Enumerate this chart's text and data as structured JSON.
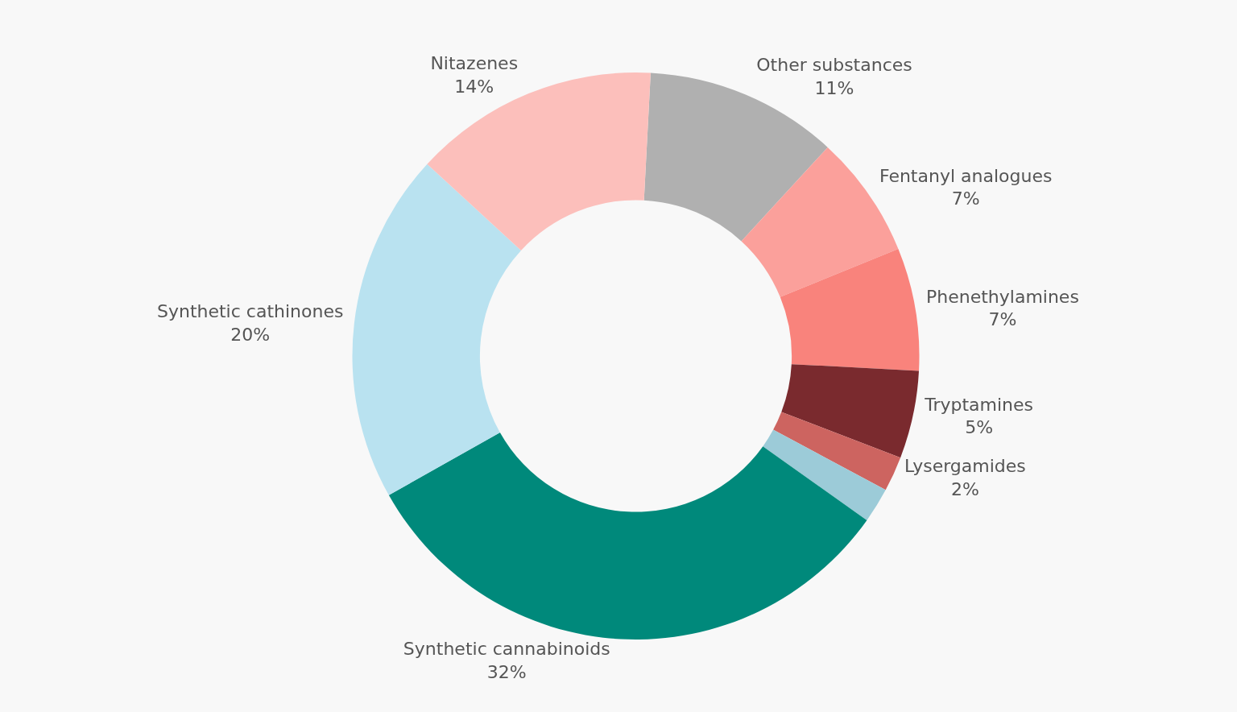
{
  "chart_data": {
    "type": "donut",
    "categories": [
      "Other substances",
      "Fentanyl analogues",
      "Phenethylamines",
      "Tryptamines",
      "Lysergamides",
      null,
      "Synthetic cannabinoids",
      "Synthetic cathinones",
      "Nitazenes"
    ],
    "values": [
      11,
      7,
      7,
      5,
      2,
      2,
      32,
      20,
      14
    ],
    "value_labels": [
      "11%",
      "7%",
      "7%",
      "5%",
      "2%",
      null,
      "32%",
      "20%",
      "14%"
    ],
    "colors": [
      "#b0b0b0",
      "#fba09b",
      "#f9837c",
      "#7a2a2e",
      "#cd6460",
      "#9ccbd8",
      "#00897b",
      "#b9e2f0",
      "#fcbfbb"
    ],
    "legend": false
  }
}
